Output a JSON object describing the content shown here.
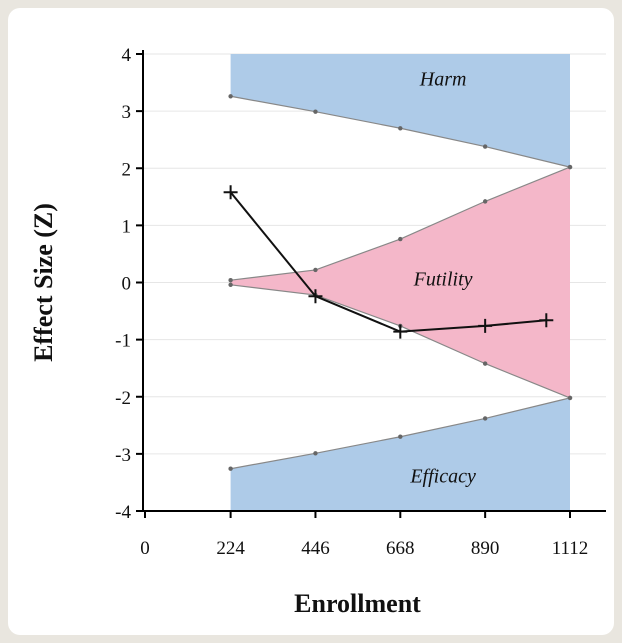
{
  "chart_data": {
    "type": "line",
    "title": "",
    "xlabel": "Enrollment",
    "ylabel": "Effect Size (Z)",
    "xlim": [
      0,
      1112
    ],
    "ylim": [
      -4,
      4
    ],
    "x_ticks": [
      0,
      224,
      446,
      668,
      890,
      1112
    ],
    "y_ticks": [
      4,
      3,
      2,
      1,
      0,
      -1,
      -2,
      -3,
      -4
    ],
    "grid": true,
    "colors": {
      "harm_efficacy_fill": "#aecbe8",
      "futility_fill": "#f4b7c9",
      "boundary_line": "#888888",
      "observed_line": "#111111"
    },
    "regions": {
      "harm": {
        "label": "Harm",
        "x": [
          224,
          446,
          668,
          890,
          1112
        ],
        "lower": [
          3.26,
          2.99,
          2.7,
          2.38,
          2.02
        ],
        "upper": [
          4,
          4,
          4,
          4,
          4
        ]
      },
      "futility": {
        "label": "Futility",
        "x": [
          224,
          446,
          668,
          890,
          1112
        ],
        "upper": [
          0.04,
          0.22,
          0.76,
          1.42,
          2.02
        ],
        "lower": [
          -0.04,
          -0.22,
          -0.76,
          -1.42,
          -2.02
        ]
      },
      "efficacy": {
        "label": "Efficacy",
        "x": [
          224,
          446,
          668,
          890,
          1112
        ],
        "upper": [
          -3.26,
          -2.99,
          -2.7,
          -2.38,
          -2.02
        ],
        "lower": [
          -4,
          -4,
          -4,
          -4,
          -4
        ]
      }
    },
    "series": [
      {
        "x": [
          224,
          446,
          668,
          890,
          1050
        ],
        "y": [
          1.58,
          -0.24,
          -0.86,
          -0.76,
          -0.66
        ],
        "marker": "plus"
      }
    ]
  }
}
